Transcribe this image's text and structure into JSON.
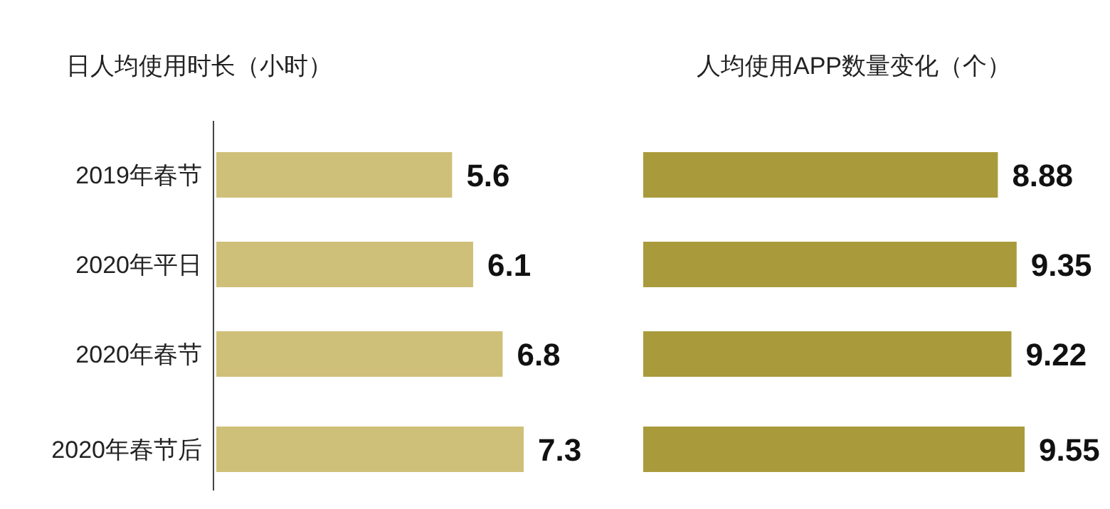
{
  "chart_data": [
    {
      "type": "bar",
      "orientation": "horizontal",
      "title": "日人均使用时长（小时）",
      "categories": [
        "2019年春节",
        "2020年平日",
        "2020年春节",
        "2020年春节后"
      ],
      "values": [
        5.6,
        6.1,
        6.8,
        7.3
      ],
      "color": "#cfc079",
      "data_labels": true,
      "tick_labels": "y"
    },
    {
      "type": "bar",
      "orientation": "horizontal",
      "title": "人均使用APP数量变化（个）",
      "categories": [
        null,
        null,
        null,
        null
      ],
      "values": [
        8.88,
        9.35,
        9.22,
        9.55
      ],
      "color": "#a99b3c",
      "data_labels": true,
      "tick_labels": false
    }
  ]
}
